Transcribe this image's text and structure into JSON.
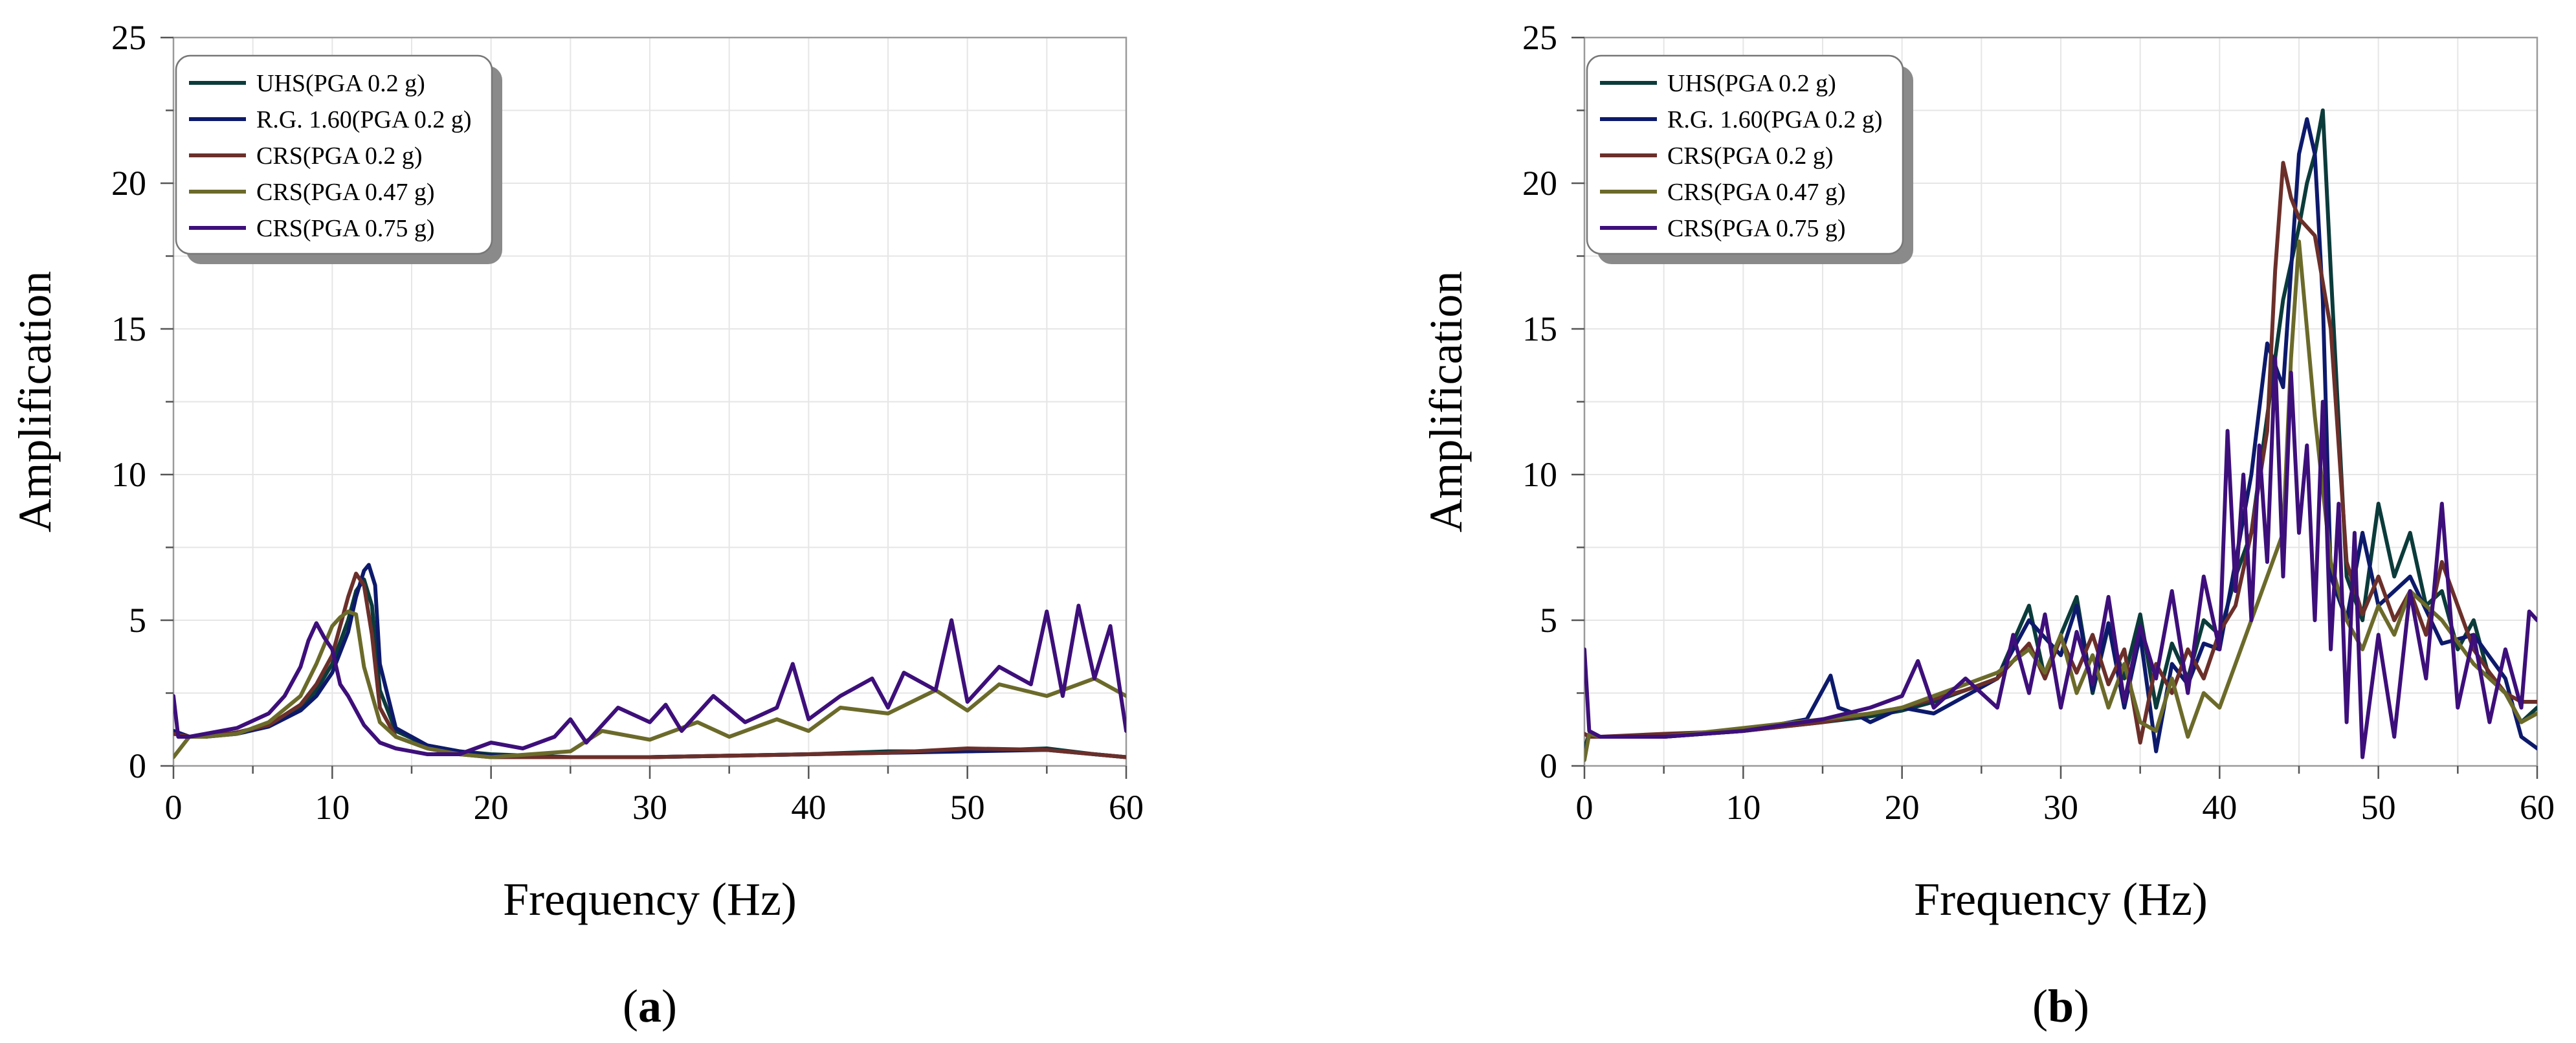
{
  "chart_data": [
    {
      "type": "line",
      "panel_label": "(a)",
      "xlabel": "Frequency (Hz)",
      "ylabel": "Amplification",
      "xlim": [
        0,
        60
      ],
      "ylim": [
        0,
        25
      ],
      "xticks": [
        0,
        10,
        20,
        30,
        40,
        50,
        60
      ],
      "yticks": [
        0,
        5,
        10,
        15,
        20,
        25
      ],
      "grid": true,
      "legend_position": "top-left",
      "series": [
        {
          "name": "UHS(PGA 0.2 g)",
          "color": "#0b3b3a",
          "x": [
            0,
            1,
            2,
            4,
            6,
            8,
            9,
            10,
            11,
            11.5,
            12,
            12.5,
            13,
            14,
            16,
            18,
            20,
            25,
            30,
            35,
            40,
            45,
            50,
            55,
            58,
            60
          ],
          "y": [
            1.2,
            1.0,
            1.0,
            1.15,
            1.4,
            2.0,
            2.6,
            3.5,
            5.0,
            6.0,
            6.4,
            5.5,
            2.6,
            1.2,
            0.7,
            0.5,
            0.4,
            0.3,
            0.3,
            0.35,
            0.4,
            0.5,
            0.5,
            0.6,
            0.4,
            0.3
          ]
        },
        {
          "name": "R.G. 1.60(PGA 0.2 g)",
          "color": "#0d1a6b",
          "x": [
            0,
            1,
            2,
            4,
            6,
            8,
            9,
            10,
            11,
            11.5,
            12,
            12.3,
            12.7,
            13,
            14,
            16,
            18,
            20,
            25,
            30,
            35,
            40,
            45,
            50,
            55,
            58,
            60
          ],
          "y": [
            1.2,
            1.0,
            1.0,
            1.1,
            1.35,
            1.9,
            2.4,
            3.2,
            4.6,
            5.8,
            6.7,
            6.9,
            6.2,
            3.5,
            1.3,
            0.7,
            0.5,
            0.35,
            0.3,
            0.3,
            0.35,
            0.4,
            0.45,
            0.5,
            0.55,
            0.4,
            0.3
          ]
        },
        {
          "name": "CRS(PGA 0.2 g)",
          "color": "#6b2f2a",
          "x": [
            0,
            1,
            2,
            4,
            6,
            8,
            9,
            10,
            10.5,
            11,
            11.5,
            12,
            12.5,
            13,
            14,
            16,
            18,
            20,
            25,
            30,
            35,
            40,
            45,
            50,
            55,
            58,
            60
          ],
          "y": [
            1.1,
            1.0,
            1.0,
            1.15,
            1.4,
            2.1,
            2.8,
            3.8,
            4.8,
            5.8,
            6.6,
            6.2,
            4.5,
            2.0,
            1.0,
            0.6,
            0.4,
            0.3,
            0.3,
            0.3,
            0.35,
            0.4,
            0.45,
            0.6,
            0.55,
            0.4,
            0.3
          ]
        },
        {
          "name": "CRS(PGA 0.47 g)",
          "color": "#6b6a2a",
          "x": [
            0,
            1,
            2,
            4,
            6,
            8,
            9,
            10,
            10.5,
            11,
            11.5,
            12,
            13,
            14,
            16,
            18,
            20,
            25,
            27,
            30,
            33,
            35,
            38,
            40,
            42,
            45,
            48,
            50,
            52,
            55,
            58,
            60
          ],
          "y": [
            0.3,
            1.0,
            1.0,
            1.1,
            1.5,
            2.4,
            3.5,
            4.8,
            5.1,
            5.3,
            5.2,
            3.4,
            1.5,
            1.0,
            0.6,
            0.4,
            0.3,
            0.5,
            1.2,
            0.9,
            1.5,
            1.0,
            1.6,
            1.2,
            2.0,
            1.8,
            2.6,
            1.9,
            2.8,
            2.4,
            3.0,
            2.4
          ]
        },
        {
          "name": "CRS(PGA 0.75 g)",
          "color": "#3d0f7a",
          "x": [
            0,
            0.3,
            1,
            2,
            4,
            6,
            7,
            8,
            8.5,
            9,
            9.5,
            10,
            10.5,
            11,
            12,
            13,
            14,
            16,
            18,
            20,
            22,
            24,
            25,
            26,
            28,
            30,
            31,
            32,
            34,
            36,
            38,
            39,
            40,
            42,
            44,
            45,
            46,
            48,
            49,
            50,
            52,
            54,
            55,
            56,
            57,
            58,
            59,
            60
          ],
          "y": [
            2.4,
            1.0,
            1.0,
            1.1,
            1.3,
            1.8,
            2.4,
            3.4,
            4.3,
            4.9,
            4.4,
            4.0,
            2.8,
            2.4,
            1.4,
            0.8,
            0.6,
            0.4,
            0.4,
            0.8,
            0.6,
            1.0,
            1.6,
            0.8,
            2.0,
            1.5,
            2.1,
            1.2,
            2.4,
            1.5,
            2.0,
            3.5,
            1.6,
            2.4,
            3.0,
            2.0,
            3.2,
            2.6,
            5.0,
            2.2,
            3.4,
            2.8,
            5.3,
            2.4,
            5.5,
            3.0,
            4.8,
            1.2
          ]
        }
      ]
    },
    {
      "type": "line",
      "panel_label": "(b)",
      "xlabel": "Frequency (Hz)",
      "ylabel": "Amplification",
      "xlim": [
        0,
        60
      ],
      "ylim": [
        0,
        25
      ],
      "xticks": [
        0,
        10,
        20,
        30,
        40,
        50,
        60
      ],
      "yticks": [
        0,
        5,
        10,
        15,
        20,
        25
      ],
      "grid": true,
      "legend_position": "top-left",
      "series": [
        {
          "name": "UHS(PGA 0.2 g)",
          "color": "#0b3b3a",
          "x": [
            0,
            0.3,
            1,
            5,
            10,
            15,
            18,
            20,
            22,
            24,
            26,
            28,
            29,
            30,
            31,
            32,
            33,
            34,
            35,
            36,
            37,
            38,
            39,
            40,
            41,
            42,
            43,
            44,
            45,
            45.5,
            46,
            46.5,
            47,
            48,
            49,
            50,
            51,
            52,
            53,
            54,
            55,
            56,
            57,
            58,
            59,
            60
          ],
          "y": [
            0.6,
            1.1,
            1.0,
            1.0,
            1.2,
            1.5,
            1.7,
            1.9,
            2.2,
            2.6,
            3.0,
            5.5,
            3.0,
            4.5,
            5.8,
            2.5,
            4.8,
            3.0,
            5.2,
            2.0,
            4.2,
            3.0,
            5.0,
            4.5,
            6.5,
            8.0,
            12.0,
            16.0,
            18.5,
            20.0,
            21.0,
            22.5,
            17.0,
            6.5,
            5.0,
            9.0,
            6.5,
            8.0,
            5.5,
            6.0,
            4.0,
            5.0,
            3.0,
            2.5,
            1.5,
            2.0
          ]
        },
        {
          "name": "R.G. 1.60(PGA 0.2 g)",
          "color": "#0d1a6b",
          "x": [
            0,
            0.3,
            1,
            5,
            10,
            14,
            15.5,
            16,
            17,
            18,
            20,
            22,
            24,
            26,
            28,
            30,
            31,
            32,
            33,
            34,
            35,
            36,
            37,
            38,
            39,
            40,
            41,
            42,
            43,
            44,
            44.5,
            45,
            45.5,
            46,
            46.5,
            47,
            48,
            49,
            50,
            52,
            54,
            56,
            58,
            59,
            60
          ],
          "y": [
            0.3,
            1.1,
            1.0,
            1.0,
            1.2,
            1.6,
            3.1,
            2.0,
            1.8,
            1.5,
            2.0,
            1.8,
            2.4,
            3.0,
            5.0,
            3.8,
            5.5,
            2.6,
            4.9,
            2.0,
            4.5,
            0.5,
            3.5,
            2.8,
            4.2,
            4.0,
            7.0,
            10.0,
            14.5,
            13.0,
            17.0,
            21.0,
            22.2,
            21.0,
            16.0,
            6.5,
            5.0,
            8.0,
            5.5,
            6.5,
            4.2,
            4.5,
            3.0,
            1.0,
            0.6
          ]
        },
        {
          "name": "CRS(PGA 0.2 g)",
          "color": "#6b2f2a",
          "x": [
            0,
            0.3,
            1,
            5,
            10,
            15,
            18,
            20,
            22,
            24,
            26,
            28,
            29,
            30,
            31,
            32,
            33,
            34,
            35,
            36,
            37,
            38,
            39,
            40,
            41,
            42,
            43,
            43.5,
            44,
            44.5,
            45,
            46,
            47,
            48,
            49,
            50,
            51,
            52,
            53,
            54,
            55,
            56,
            57,
            58,
            59,
            60
          ],
          "y": [
            1.1,
            1.0,
            1.0,
            1.1,
            1.2,
            1.5,
            1.8,
            2.0,
            2.3,
            2.6,
            3.0,
            4.2,
            3.0,
            4.4,
            3.2,
            4.5,
            2.8,
            4.0,
            0.8,
            3.5,
            2.5,
            4.0,
            3.0,
            4.6,
            5.5,
            8.0,
            11.5,
            17.0,
            20.7,
            19.5,
            18.8,
            18.2,
            15.0,
            7.0,
            5.2,
            6.5,
            5.0,
            6.0,
            4.5,
            7.0,
            5.5,
            4.0,
            3.2,
            2.5,
            2.2,
            2.2
          ]
        },
        {
          "name": "CRS(PGA 0.47 g)",
          "color": "#6b6a2a",
          "x": [
            0,
            0.3,
            1,
            5,
            10,
            15,
            18,
            20,
            22,
            24,
            26,
            28,
            29,
            30,
            31,
            32,
            33,
            34,
            35,
            36,
            37,
            38,
            39,
            40,
            41,
            42,
            43,
            44,
            44.5,
            45,
            45.5,
            46,
            47,
            48,
            49,
            50,
            51,
            52,
            54,
            56,
            58,
            59,
            60
          ],
          "y": [
            0.2,
            1.1,
            1.0,
            1.0,
            1.3,
            1.6,
            1.8,
            2.0,
            2.4,
            2.8,
            3.2,
            4.0,
            3.2,
            4.5,
            2.5,
            3.8,
            2.0,
            3.5,
            1.5,
            1.2,
            3.0,
            1.0,
            2.5,
            2.0,
            3.5,
            5.0,
            6.5,
            8.0,
            14.0,
            18.0,
            15.0,
            12.0,
            7.0,
            5.0,
            4.0,
            5.5,
            4.5,
            6.0,
            5.0,
            3.5,
            2.5,
            1.5,
            1.8
          ]
        },
        {
          "name": "CRS(PGA 0.75 g)",
          "color": "#3d0f7a",
          "x": [
            0,
            0.3,
            1,
            5,
            10,
            15,
            18,
            20,
            21,
            22,
            24,
            26,
            27,
            28,
            29,
            30,
            31,
            32,
            33,
            34,
            35,
            36,
            37,
            38,
            39,
            40,
            40.5,
            41,
            41.5,
            42,
            42.5,
            43,
            43.5,
            44,
            44.5,
            45,
            45.5,
            46,
            46.5,
            47,
            47.5,
            48,
            48.5,
            49,
            50,
            51,
            52,
            53,
            54,
            55,
            56,
            57,
            58,
            59,
            59.5,
            60
          ],
          "y": [
            4.0,
            1.2,
            1.0,
            1.0,
            1.2,
            1.6,
            2.0,
            2.4,
            3.6,
            2.0,
            3.0,
            2.0,
            4.5,
            2.5,
            5.2,
            2.0,
            4.6,
            2.8,
            5.8,
            2.2,
            4.8,
            3.0,
            6.0,
            2.5,
            6.5,
            4.0,
            11.5,
            6.0,
            10.0,
            5.0,
            11.0,
            7.0,
            14.0,
            6.5,
            13.5,
            8.0,
            11.0,
            5.0,
            12.5,
            4.0,
            9.0,
            1.5,
            8.0,
            0.3,
            4.5,
            1.0,
            6.0,
            3.0,
            9.0,
            2.0,
            4.5,
            1.5,
            4.0,
            2.0,
            5.3,
            5.0
          ]
        }
      ]
    }
  ]
}
